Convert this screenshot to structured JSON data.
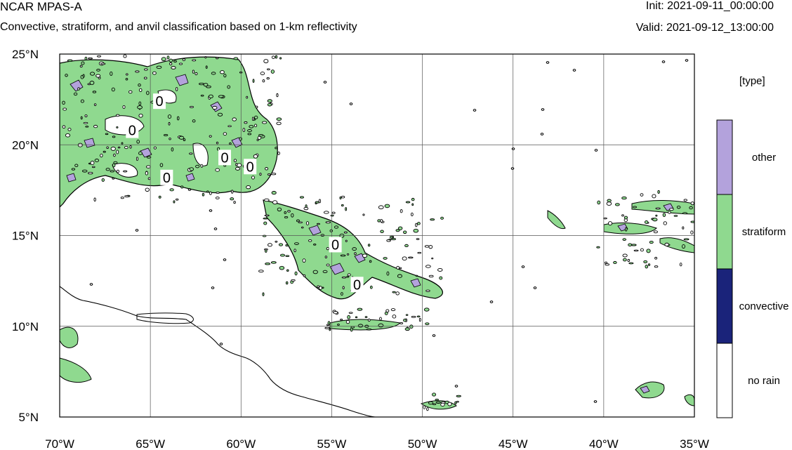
{
  "header": {
    "model": "NCAR MPAS-A",
    "description": "Convective, stratiform, and anvil classification based on 1-km reflectivity",
    "init": "Init: 2021-09-11_00:00:00",
    "valid": "Valid: 2021-09-12_13:00:00"
  },
  "map": {
    "extent": {
      "lon": [
        -70,
        -35
      ],
      "lat": [
        5,
        25
      ]
    },
    "lat_ticks": [
      {
        "value": 25,
        "label": "25°N"
      },
      {
        "value": 20,
        "label": "20°N"
      },
      {
        "value": 15,
        "label": "15°N"
      },
      {
        "value": 10,
        "label": "10°N"
      },
      {
        "value": 5,
        "label": "5°N"
      }
    ],
    "lon_ticks": [
      {
        "value": -70,
        "label": "70°W"
      },
      {
        "value": -65,
        "label": "65°W"
      },
      {
        "value": -60,
        "label": "60°W"
      },
      {
        "value": -55,
        "label": "55°W"
      },
      {
        "value": -50,
        "label": "50°W"
      },
      {
        "value": -45,
        "label": "45°W"
      },
      {
        "value": -40,
        "label": "40°W"
      },
      {
        "value": -35,
        "label": "35°W"
      }
    ],
    "grid": true,
    "contour_label": "0",
    "colors": {
      "other": "#b3a2dc",
      "stratiform": "#8fd98f",
      "convective": "#1a237a",
      "no_rain": "#ffffff"
    }
  },
  "legend": {
    "units": "[type]",
    "categories": [
      "other",
      "stratiform",
      "convective",
      "no rain"
    ]
  }
}
